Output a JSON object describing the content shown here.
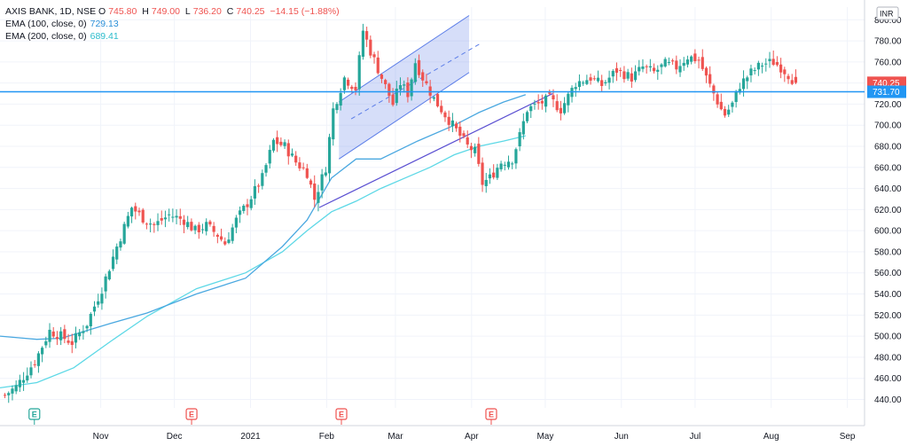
{
  "legend": {
    "symbol": "AXIS BANK, 1D, NSE",
    "open_label": "O",
    "open": "745.80",
    "high_label": "H",
    "high": "749.00",
    "low_label": "L",
    "low": "736.20",
    "close_label": "C",
    "close": "740.25",
    "change": "−14.15 (−1.88%)",
    "ema100_label": "EMA (100, close, 0)",
    "ema100_value": "729.13",
    "ema200_label": "EMA (200, close, 0)",
    "ema200_value": "689.41"
  },
  "colors": {
    "up": "#26a69a",
    "down": "#ef5350",
    "ema100": "#4aa8e0",
    "ema200": "#5dd8e6",
    "hline": "#2196f3",
    "channel": "#5b7de8",
    "trend": "#5a4fd1",
    "earn_green": "#26a69a",
    "earn_red": "#ef5350"
  },
  "chart_data": {
    "type": "candlestick",
    "currency": "INR",
    "y_ticks": [
      440,
      460,
      480,
      500,
      520,
      540,
      560,
      580,
      600,
      620,
      640,
      660,
      680,
      700,
      720,
      740,
      760,
      780,
      800
    ],
    "ylim": [
      432,
      812
    ],
    "x_ticks": [
      {
        "label": "Nov",
        "day": 41
      },
      {
        "label": "Dec",
        "day": 71
      },
      {
        "label": "2021",
        "day": 102
      },
      {
        "label": "Feb",
        "day": 133
      },
      {
        "label": "Mar",
        "day": 161
      },
      {
        "label": "Apr",
        "day": 192
      },
      {
        "label": "May",
        "day": 222
      },
      {
        "label": "Jun",
        "day": 253
      },
      {
        "label": "Jul",
        "day": 283
      },
      {
        "label": "Aug",
        "day": 314
      },
      {
        "label": "Sep",
        "day": 345
      }
    ],
    "price_keyframes": [
      [
        0,
        444
      ],
      [
        3,
        452
      ],
      [
        8,
        476
      ],
      [
        12,
        505
      ],
      [
        15,
        500
      ],
      [
        18,
        494
      ],
      [
        22,
        512
      ],
      [
        26,
        545
      ],
      [
        30,
        585
      ],
      [
        34,
        622
      ],
      [
        37,
        612
      ],
      [
        40,
        605
      ],
      [
        44,
        615
      ],
      [
        48,
        610
      ],
      [
        51,
        600
      ],
      [
        54,
        605
      ],
      [
        57,
        596
      ],
      [
        59,
        588
      ],
      [
        62,
        610
      ],
      [
        65,
        626
      ],
      [
        69,
        650
      ],
      [
        72,
        685
      ],
      [
        75,
        680
      ],
      [
        78,
        665
      ],
      [
        81,
        655
      ],
      [
        83,
        630
      ],
      [
        86,
        660
      ],
      [
        88,
        715
      ],
      [
        91,
        745
      ],
      [
        94,
        735
      ],
      [
        96,
        790
      ],
      [
        98,
        770
      ],
      [
        101,
        745
      ],
      [
        104,
        720
      ],
      [
        106,
        740
      ],
      [
        108,
        730
      ],
      [
        110,
        760
      ],
      [
        112,
        745
      ],
      [
        115,
        725
      ],
      [
        118,
        710
      ],
      [
        121,
        695
      ],
      [
        124,
        680
      ],
      [
        126,
        675
      ],
      [
        128,
        645
      ],
      [
        130,
        650
      ],
      [
        133,
        665
      ],
      [
        136,
        668
      ],
      [
        138,
        690
      ],
      [
        140,
        715
      ],
      [
        143,
        720
      ],
      [
        146,
        725
      ],
      [
        149,
        715
      ],
      [
        153,
        740
      ],
      [
        157,
        745
      ],
      [
        160,
        738
      ],
      [
        164,
        752
      ],
      [
        168,
        745
      ],
      [
        171,
        755
      ],
      [
        174,
        750
      ],
      [
        177,
        758
      ],
      [
        180,
        755
      ],
      [
        183,
        765
      ],
      [
        186,
        762
      ],
      [
        188,
        745
      ],
      [
        190,
        730
      ],
      [
        192,
        715
      ],
      [
        193,
        710
      ],
      [
        195,
        720
      ],
      [
        197,
        738
      ],
      [
        200,
        750
      ],
      [
        203,
        758
      ],
      [
        206,
        760
      ],
      [
        208,
        755
      ],
      [
        210,
        748
      ],
      [
        212,
        740
      ]
    ],
    "last_close": 740.25,
    "hline": 731.7,
    "ema100_points": [
      [
        0,
        500
      ],
      [
        15,
        497
      ],
      [
        25,
        498
      ],
      [
        45,
        512
      ],
      [
        60,
        522
      ],
      [
        80,
        540
      ],
      [
        100,
        555
      ],
      [
        115,
        585
      ],
      [
        125,
        610
      ],
      [
        135,
        650
      ],
      [
        145,
        668
      ],
      [
        155,
        668
      ],
      [
        170,
        685
      ],
      [
        185,
        700
      ],
      [
        195,
        712
      ],
      [
        205,
        722
      ],
      [
        214,
        729
      ]
    ],
    "ema200_points": [
      [
        0,
        451
      ],
      [
        15,
        456
      ],
      [
        30,
        470
      ],
      [
        45,
        495
      ],
      [
        60,
        519
      ],
      [
        80,
        545
      ],
      [
        100,
        560
      ],
      [
        115,
        580
      ],
      [
        125,
        600
      ],
      [
        135,
        618
      ],
      [
        145,
        628
      ],
      [
        155,
        640
      ],
      [
        165,
        650
      ],
      [
        175,
        660
      ],
      [
        185,
        672
      ],
      [
        195,
        680
      ],
      [
        205,
        685
      ],
      [
        214,
        690
      ]
    ],
    "channel": {
      "upper": [
        [
          138,
          722
        ],
        [
          191,
          804
        ]
      ],
      "lower": [
        [
          138,
          668
        ],
        [
          191,
          750
        ]
      ],
      "mid": [
        [
          143,
          706
        ],
        [
          196,
          778
        ]
      ]
    },
    "trendline": [
      [
        130,
        622
      ],
      [
        225,
        730
      ]
    ],
    "earnings": [
      {
        "day": 14,
        "kind": "green"
      },
      {
        "day": 78,
        "kind": "red"
      },
      {
        "day": 139,
        "kind": "red"
      },
      {
        "day": 200,
        "kind": "red"
      }
    ],
    "badges": [
      {
        "name": "last-price-badge",
        "value": "740.25"
      },
      {
        "name": "hline-price-badge",
        "value": "731.70"
      }
    ]
  }
}
